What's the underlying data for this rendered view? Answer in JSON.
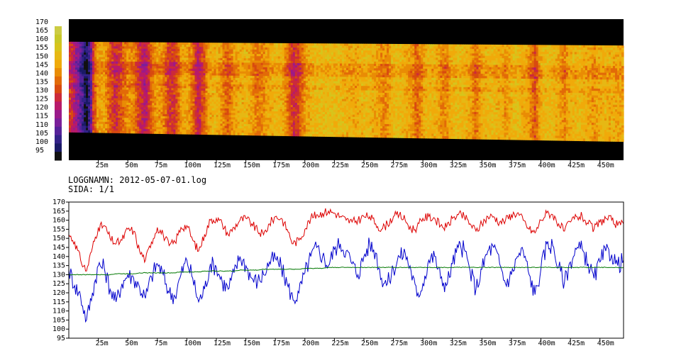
{
  "info": {
    "log_label": "LOGGNAMN: 2012-05-07-01.log",
    "page_label": "SIDA: 1/1"
  },
  "colors": {
    "background": "#ffffff",
    "plot_background": "#ffffff",
    "axis": "#000000",
    "mask": "#000000",
    "scale": [
      "#111111",
      "#1a1a66",
      "#332288",
      "#552299",
      "#7a1f9a",
      "#9a1a8a",
      "#b81a6a",
      "#cc2a3a",
      "#d84a10",
      "#e26a08",
      "#e98c05",
      "#f0aa0a",
      "#e6b814",
      "#d7c41c",
      "#c7c828",
      "#cccc44"
    ],
    "upper_series": "#dd0000",
    "lower_series": "#0000cc",
    "mid_series": "#007700"
  },
  "chart_data": [
    {
      "type": "heatmap",
      "title": "",
      "xlabel": "",
      "ylabel": "",
      "x_unit": "m",
      "xlim": [
        0,
        470
      ],
      "x_ticks": [
        25,
        50,
        75,
        100,
        125,
        150,
        175,
        200,
        225,
        250,
        275,
        300,
        325,
        350,
        375,
        400,
        425,
        450
      ],
      "x_tick_labels": [
        "25m",
        "50m",
        "75m",
        "100m",
        "125m",
        "150m",
        "175m",
        "200m",
        "225m",
        "250m",
        "275m",
        "300m",
        "325m",
        "350m",
        "375m",
        "400m",
        "425m",
        "450m"
      ],
      "color_scale": {
        "labels": [
          "95",
          "100",
          "105",
          "110",
          "115",
          "120",
          "125",
          "130",
          "135",
          "140",
          "145",
          "150",
          "155",
          "160",
          "165",
          "170"
        ],
        "min": 95,
        "max": 170
      },
      "band": {
        "top_left": 158,
        "top_right": 156,
        "bottom_left": 110,
        "bottom_right": 105
      },
      "dominant_value_range": [
        140,
        160
      ],
      "grid": false,
      "legend": "color bar on left"
    },
    {
      "type": "line",
      "title": "",
      "xlabel": "",
      "ylabel": "",
      "x_unit": "m",
      "xlim": [
        0,
        470
      ],
      "ylim": [
        95,
        170
      ],
      "y_ticks": [
        95,
        100,
        105,
        110,
        115,
        120,
        125,
        130,
        135,
        140,
        145,
        150,
        155,
        160,
        165,
        170
      ],
      "y_tick_labels": [
        "95",
        "100",
        "105",
        "110",
        "115",
        "120",
        "125",
        "130",
        "135",
        "140",
        "145",
        "150",
        "155",
        "160",
        "165",
        "170"
      ],
      "x_ticks": [
        25,
        50,
        75,
        100,
        125,
        150,
        175,
        200,
        225,
        250,
        275,
        300,
        325,
        350,
        375,
        400,
        425,
        450
      ],
      "x_tick_labels": [
        "25m",
        "50m",
        "75m",
        "100m",
        "125m",
        "150m",
        "175m",
        "200m",
        "225m",
        "250m",
        "275m",
        "300m",
        "325m",
        "350m",
        "375m",
        "400m",
        "425m",
        "450m"
      ],
      "x": [
        0,
        5,
        10,
        15,
        20,
        25,
        30,
        35,
        40,
        45,
        50,
        55,
        60,
        65,
        70,
        75,
        80,
        85,
        90,
        95,
        100,
        105,
        110,
        115,
        120,
        125,
        130,
        135,
        140,
        145,
        150,
        155,
        160,
        165,
        170,
        175,
        180,
        185,
        190,
        195,
        200,
        205,
        210,
        215,
        220,
        225,
        230,
        235,
        240,
        245,
        250,
        255,
        260,
        265,
        270,
        275,
        280,
        285,
        290,
        295,
        300,
        305,
        310,
        315,
        320,
        325,
        330,
        335,
        340,
        345,
        350,
        355,
        360,
        365,
        370,
        375,
        380,
        385,
        390,
        395,
        400,
        405,
        410,
        415,
        420,
        425,
        430,
        435,
        440,
        445,
        450,
        455,
        460,
        465,
        470
      ],
      "series": [
        {
          "values": [
            152,
            148,
            138,
            132,
            145,
            156,
            157,
            150,
            147,
            149,
            155,
            154,
            143,
            138,
            148,
            156,
            152,
            146,
            148,
            156,
            157,
            149,
            143,
            152,
            160,
            161,
            158,
            152,
            156,
            160,
            161,
            158,
            154,
            152,
            158,
            162,
            161,
            155,
            147,
            149,
            155,
            161,
            163,
            164,
            165,
            164,
            162,
            160,
            159,
            160,
            162,
            162,
            158,
            155,
            158,
            162,
            163,
            160,
            155,
            156,
            161,
            162,
            161,
            157,
            156,
            161,
            163,
            162,
            158,
            154,
            158,
            162,
            162,
            159,
            160,
            163,
            164,
            160,
            155,
            153,
            160,
            164,
            163,
            158,
            154,
            159,
            162,
            162,
            158,
            155,
            159,
            161,
            160,
            157,
            158
          ]
        },
        {
          "values": [
            133,
            124,
            118,
            105,
            120,
            135,
            134,
            122,
            115,
            125,
            130,
            128,
            123,
            117,
            129,
            136,
            130,
            120,
            118,
            130,
            138,
            128,
            115,
            122,
            136,
            134,
            126,
            122,
            131,
            140,
            135,
            128,
            126,
            130,
            137,
            139,
            134,
            125,
            116,
            120,
            131,
            140,
            145,
            140,
            135,
            144,
            147,
            143,
            136,
            130,
            140,
            147,
            142,
            128,
            125,
            133,
            140,
            142,
            132,
            118,
            125,
            138,
            140,
            128,
            124,
            136,
            145,
            144,
            132,
            122,
            133,
            143,
            145,
            136,
            125,
            130,
            140,
            143,
            130,
            119,
            133,
            147,
            146,
            134,
            126,
            137,
            144,
            144,
            136,
            128,
            137,
            143,
            141,
            135,
            138
          ]
        },
        {
          "values": [
            130,
            130,
            130,
            130,
            130,
            130,
            130,
            130,
            130.5,
            130.5,
            130.5,
            130.5,
            131,
            131,
            131,
            131,
            131,
            131,
            131,
            131.5,
            131.5,
            131.5,
            131.5,
            132,
            132,
            132,
            132,
            132,
            132,
            132.5,
            132.5,
            132.5,
            132.5,
            133,
            133,
            133,
            133,
            133,
            133,
            133,
            133.5,
            133.5,
            133.5,
            133.5,
            134,
            134,
            134,
            134,
            134,
            134,
            134,
            134,
            134,
            134,
            134,
            134,
            134,
            134,
            134,
            134,
            134,
            134,
            134,
            134,
            134,
            134,
            134,
            134,
            134,
            134,
            134,
            134,
            134,
            134,
            134,
            134,
            134,
            134,
            134,
            134,
            134,
            134,
            134,
            134,
            134,
            134,
            134,
            134,
            134,
            134,
            134,
            134,
            134,
            134,
            134
          ]
        }
      ],
      "grid": false,
      "legend": "none"
    }
  ]
}
